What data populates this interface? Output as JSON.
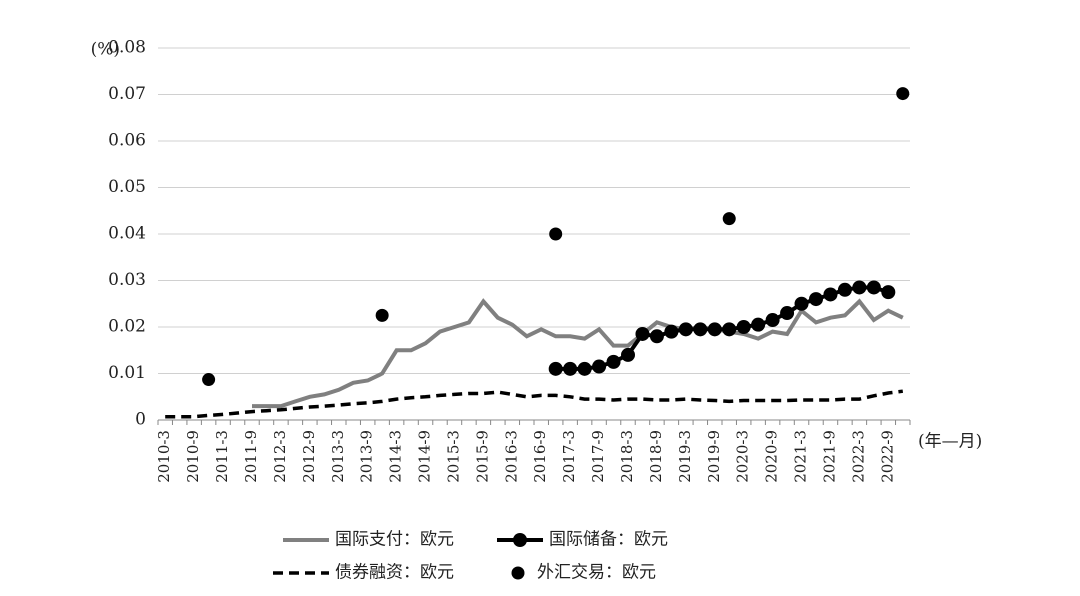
{
  "chart_data": {
    "type": "line",
    "y_label": "(%)",
    "x_label": "(年—月)",
    "categories": [
      "2010-3",
      null,
      "2010-9",
      null,
      "2011-3",
      null,
      "2011-9",
      null,
      "2012-3",
      null,
      "2012-9",
      null,
      "2013-3",
      null,
      "2013-9",
      null,
      "2014-3",
      null,
      "2014-9",
      null,
      "2015-3",
      null,
      "2015-9",
      null,
      "2016-3",
      null,
      "2016-9",
      null,
      "2017-3",
      null,
      "2017-9",
      null,
      "2018-3",
      null,
      "2018-9",
      null,
      "2019-3",
      null,
      "2019-9",
      null,
      "2020-3",
      null,
      "2020-9",
      null,
      "2021-3",
      null,
      "2021-9",
      null,
      "2022-3",
      null,
      "2022-9",
      null
    ],
    "ylim": [
      0,
      0.08
    ],
    "yticks": [
      0,
      0.01,
      0.02,
      0.03,
      0.04,
      0.05,
      0.06,
      0.07,
      0.08
    ],
    "grid": true,
    "series": [
      {
        "name": "国际支付：欧元",
        "color": "#808080",
        "style": "line",
        "values": [
          null,
          null,
          null,
          null,
          null,
          null,
          0.003,
          0.003,
          0.003,
          0.004,
          0.005,
          0.0055,
          0.0065,
          0.008,
          0.0085,
          0.01,
          0.015,
          0.015,
          0.0165,
          0.019,
          0.02,
          0.021,
          0.0255,
          0.022,
          0.0205,
          0.018,
          0.0195,
          0.018,
          0.018,
          0.0175,
          0.0195,
          0.016,
          0.016,
          0.0185,
          0.021,
          0.02,
          0.0195,
          0.02,
          0.0195,
          0.019,
          0.0185,
          0.0175,
          0.019,
          0.0185,
          0.0235,
          0.021,
          0.022,
          0.0225,
          0.0255,
          0.0215,
          0.0235,
          0.022
        ]
      },
      {
        "name": "国际储备：欧元",
        "color": "#000000",
        "style": "line-marker",
        "values": [
          null,
          null,
          null,
          null,
          null,
          null,
          null,
          null,
          null,
          null,
          null,
          null,
          null,
          null,
          null,
          null,
          null,
          null,
          null,
          null,
          null,
          null,
          null,
          null,
          null,
          null,
          null,
          0.011,
          0.011,
          0.011,
          0.0115,
          0.0125,
          0.014,
          0.0185,
          0.018,
          0.019,
          0.0195,
          0.0195,
          0.0195,
          0.0195,
          0.02,
          0.0205,
          0.0215,
          0.023,
          0.025,
          0.026,
          0.027,
          0.028,
          0.0285,
          0.0285,
          0.0275,
          null
        ]
      },
      {
        "name": "债券融资：欧元",
        "color": "#000000",
        "style": "dashed",
        "values": [
          0.0007,
          0.0007,
          0.0007,
          0.001,
          0.0012,
          0.0015,
          0.0018,
          0.002,
          0.0022,
          0.0025,
          0.0028,
          0.003,
          0.0032,
          0.0035,
          0.0037,
          0.004,
          0.0045,
          0.0048,
          0.005,
          0.0053,
          0.0055,
          0.0057,
          0.0057,
          0.006,
          0.0055,
          0.005,
          0.0053,
          0.0053,
          0.005,
          0.0045,
          0.0045,
          0.0043,
          0.0045,
          0.0045,
          0.0043,
          0.0043,
          0.0045,
          0.0043,
          0.0042,
          0.004,
          0.0042,
          0.0042,
          0.0042,
          0.0042,
          0.0043,
          0.0043,
          0.0043,
          0.0045,
          0.0045,
          0.0052,
          0.0058,
          0.0062
        ]
      },
      {
        "name": "外汇交易：欧元",
        "color": "#000000",
        "style": "dots",
        "values": [
          null,
          null,
          null,
          0.0087,
          null,
          null,
          null,
          null,
          null,
          null,
          null,
          null,
          null,
          null,
          null,
          0.0225,
          null,
          null,
          null,
          null,
          null,
          null,
          null,
          null,
          null,
          null,
          null,
          0.04,
          null,
          null,
          null,
          null,
          null,
          null,
          null,
          null,
          null,
          null,
          null,
          0.0433,
          null,
          null,
          null,
          null,
          null,
          null,
          null,
          null,
          null,
          null,
          null,
          0.0702
        ]
      }
    ]
  }
}
